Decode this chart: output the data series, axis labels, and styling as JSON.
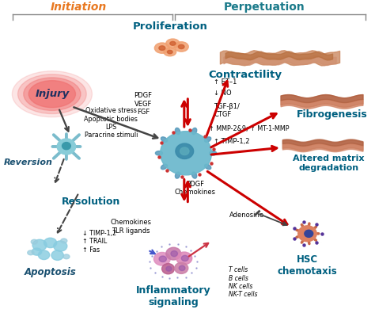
{
  "title_initiation": "Initiation",
  "title_perpetuation": "Perpetuation",
  "bg_color": "#ffffff",
  "teal": "#1a7a8a",
  "orange_title": "#e87820",
  "dark_teal": "#006080",
  "red_arrow": "#cc0000",
  "dark_arrow": "#444444",
  "blue_italic": "#1a5070",
  "labels": {
    "injury": "Injury",
    "proliferation": "Proliferation",
    "contractility": "Contractility",
    "fibrogenesis": "Fibrogenesis",
    "altered_matrix": "Altered matrix\ndegradation",
    "hsc_chemotaxis": "HSC\nchemotaxis",
    "inflammatory": "Inflammatory\nsignaling",
    "apoptosis": "Apoptosis",
    "resolution": "Resolution",
    "reversion": "Reversion"
  },
  "annotations": {
    "oxidative": "Oxidative stress\nApoptotic bodies\nLPS\nParacrine stimuli",
    "pdgf_vegf": "PDGF\nVEGF\nFGF",
    "et1": "↑ ET–1",
    "no": "↓ NO",
    "tgf": "TGF-β1/\nCTGF",
    "mmp": "↑ MMP-2&9; ↑ MT-1-MMP",
    "timp": "↑ TIMP-1,2",
    "pdgf_chemo": "PDGF\nChemokines",
    "adenosine": "Adenosine",
    "chemo_tlr": "Chemokines\nTLR ligands",
    "tcells": "T cells\nB cells\nNK cells\nNK-T cells",
    "timp12": "↓ TIMP-1,2\n↑ TRAIL\n↑ Fas"
  }
}
